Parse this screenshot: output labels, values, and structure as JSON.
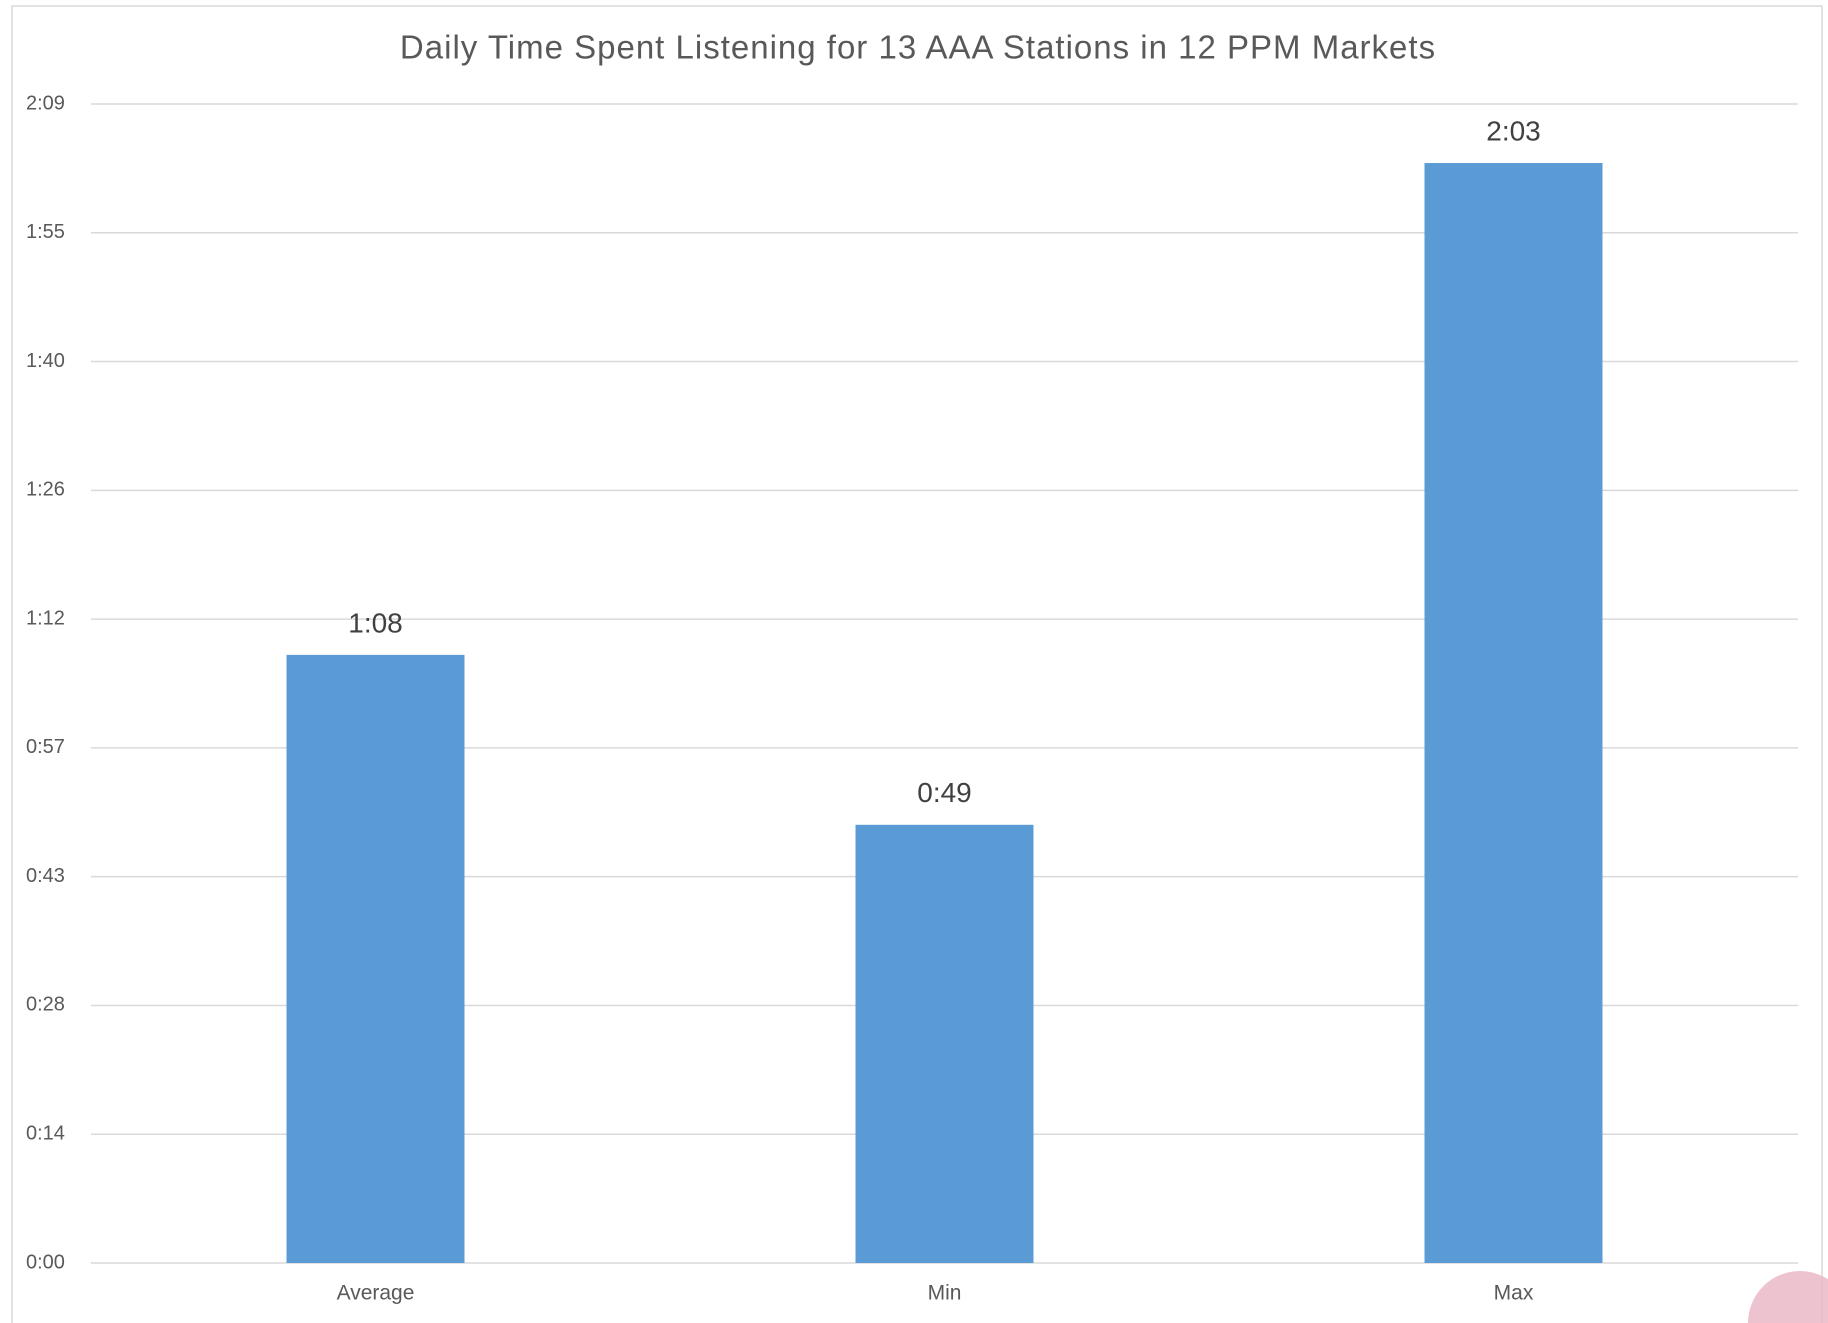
{
  "chart_data": {
    "type": "bar",
    "title": "Daily Time Spent Listening for 13 AAA Stations in 12 PPM Markets",
    "categories": [
      "Average",
      "Min",
      "Max"
    ],
    "values": [
      68,
      49,
      123
    ],
    "value_labels": [
      "1:08",
      "0:49",
      "2:03"
    ],
    "color": "#5b9bd5",
    "ylim": [
      0,
      129.6
    ],
    "yticks": [
      {
        "value": 0,
        "label": "0:00"
      },
      {
        "value": 14.4,
        "label": "0:14"
      },
      {
        "value": 28.8,
        "label": "0:28"
      },
      {
        "value": 43.2,
        "label": "0:43"
      },
      {
        "value": 57.6,
        "label": "0:57"
      },
      {
        "value": 72,
        "label": "1:12"
      },
      {
        "value": 86.4,
        "label": "1:26"
      },
      {
        "value": 100.8,
        "label": "1:40"
      },
      {
        "value": 115.2,
        "label": "1:55"
      },
      {
        "value": 129.6,
        "label": "2:09"
      }
    ],
    "grid": true
  }
}
